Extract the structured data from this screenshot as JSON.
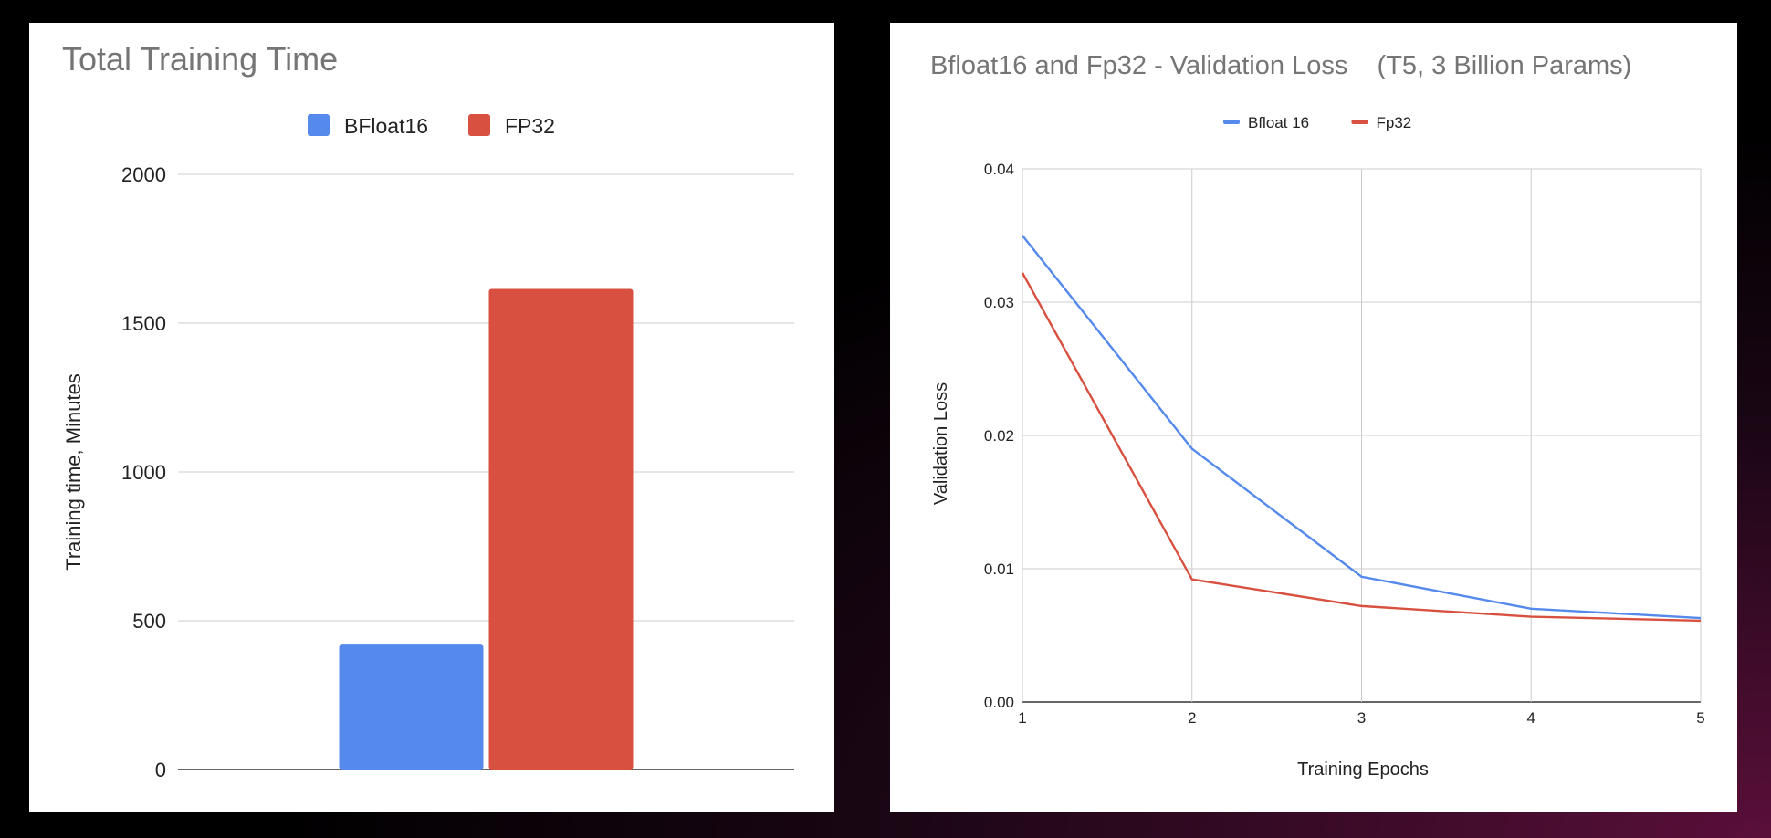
{
  "chart_data": [
    {
      "type": "bar",
      "title": "Total Training Time",
      "ylabel": "Training time, Minutes",
      "xlabel": "",
      "categories": [
        ""
      ],
      "series": [
        {
          "name": "BFloat16",
          "color": "#5589ec",
          "values": [
            420
          ]
        },
        {
          "name": "FP32",
          "color": "#d85140",
          "values": [
            1615
          ]
        }
      ],
      "ylim": [
        0,
        2000
      ],
      "yticks": [
        "0",
        "500",
        "1000",
        "1500",
        "2000"
      ],
      "legend": "top",
      "grid": true
    },
    {
      "type": "line",
      "title": "Bfloat16 and Fp32 - Validation Loss    (T5, 3 Billion Params)",
      "xlabel": "Training Epochs",
      "ylabel": "Validation Loss",
      "x": [
        1,
        2,
        3,
        4,
        5
      ],
      "series": [
        {
          "name": "Bfloat 16",
          "color": "#5589ec",
          "values": [
            0.035,
            0.019,
            0.0094,
            0.007,
            0.0063
          ]
        },
        {
          "name": "Fp32",
          "color": "#d85140",
          "values": [
            0.0322,
            0.0092,
            0.0072,
            0.0064,
            0.0061
          ]
        }
      ],
      "xlim": [
        1,
        5
      ],
      "ylim": [
        0,
        0.04
      ],
      "xticks": [
        "1",
        "2",
        "3",
        "4",
        "5"
      ],
      "yticks": [
        "0.00",
        "0.01",
        "0.02",
        "0.03",
        "0.04"
      ],
      "legend": "top",
      "grid": true
    }
  ]
}
